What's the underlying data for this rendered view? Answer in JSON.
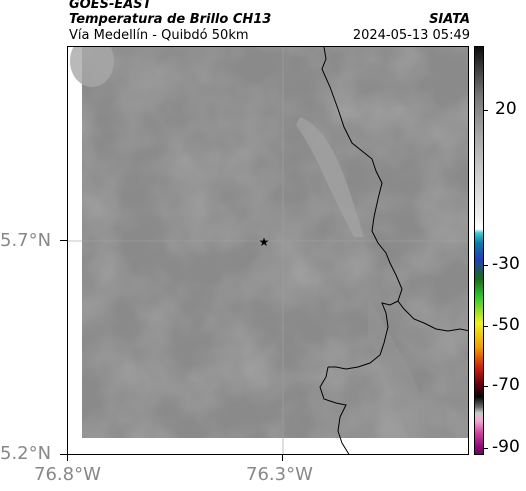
{
  "header": {
    "satellite": "GOES-EAST",
    "product": "Temperatura de Brillo CH13",
    "region": "Vía Medellín - Quibdó 50km",
    "agency": "SIATA",
    "datetime": "2024-05-13 05:49"
  },
  "map": {
    "lat_labels": [
      "5.7°N",
      "5.2°N"
    ],
    "lon_labels": [
      "76.8°W",
      "76.3°W"
    ],
    "marker": "star-marker"
  },
  "colorbar": {
    "labels": [
      "20",
      "-30",
      "-50",
      "-70",
      "-90"
    ]
  }
}
